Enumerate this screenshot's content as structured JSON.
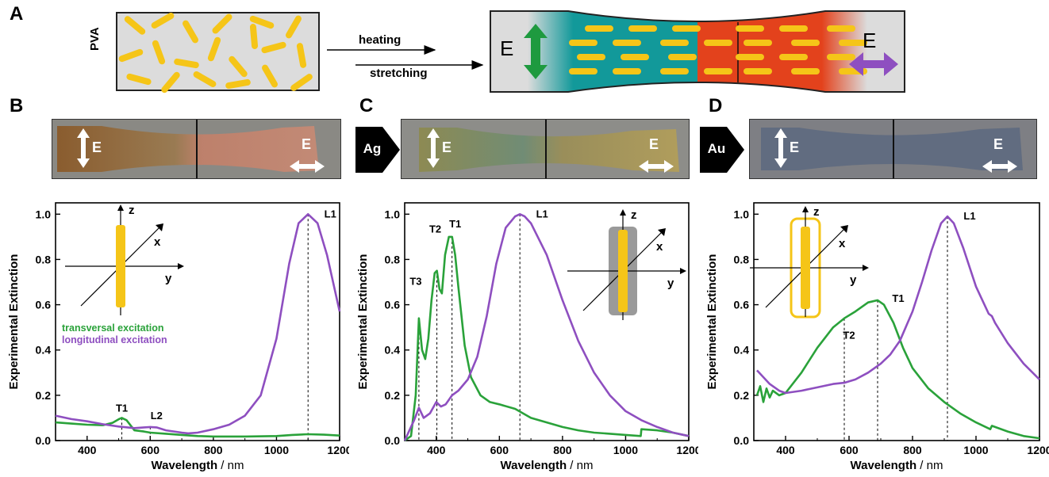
{
  "panel_a": {
    "letter": "A",
    "matrix_label": "PVA",
    "process_top": "heating",
    "process_bottom": "stretching",
    "field_left": "E",
    "field_right": "E",
    "colors": {
      "teal": "#12999a",
      "red": "#e3421c",
      "rod": "#f5c518",
      "green_arrow": "#1e9a3f",
      "purple_arrow": "#8e4fc0"
    }
  },
  "panels": [
    {
      "letter": "B",
      "e_left": "E",
      "e_right": "E",
      "metal": ""
    },
    {
      "letter": "C",
      "e_left": "E",
      "e_right": "E",
      "metal": "Ag"
    },
    {
      "letter": "D",
      "e_left": "E",
      "e_right": "E",
      "metal": "Au"
    }
  ],
  "legend": {
    "transversal": "transversal excitation",
    "longitudinal": "longitudinal excitation"
  },
  "axes_inset": {
    "z": "z",
    "x": "x",
    "y": "y"
  },
  "chart_data": [
    {
      "type": "line",
      "xlabel": "Wavelength",
      "xunit": "/ nm",
      "ylabel": "Experimental Extinction",
      "xlim": [
        300,
        1200
      ],
      "ylim": [
        0,
        1.05
      ],
      "xticks": [
        400,
        600,
        800,
        1000,
        1200
      ],
      "yticks": [
        0.0,
        0.2,
        0.4,
        0.6,
        0.8,
        1.0
      ],
      "series": [
        {
          "name": "transversal excitation",
          "color": "#2aa23a",
          "x": [
            300,
            350,
            400,
            450,
            480,
            500,
            510,
            525,
            550,
            580,
            600,
            650,
            700,
            750,
            800,
            900,
            1000,
            1050,
            1100,
            1150,
            1200
          ],
          "y": [
            0.08,
            0.075,
            0.07,
            0.068,
            0.078,
            0.094,
            0.1,
            0.09,
            0.045,
            0.04,
            0.035,
            0.03,
            0.025,
            0.02,
            0.018,
            0.018,
            0.02,
            0.025,
            0.028,
            0.026,
            0.022
          ]
        },
        {
          "name": "longitudinal excitation",
          "color": "#8e4fc0",
          "x": [
            300,
            350,
            400,
            450,
            500,
            550,
            580,
            600,
            620,
            650,
            700,
            720,
            750,
            800,
            850,
            900,
            950,
            1000,
            1040,
            1070,
            1100,
            1130,
            1160,
            1200
          ],
          "y": [
            0.11,
            0.095,
            0.085,
            0.072,
            0.062,
            0.055,
            0.058,
            0.06,
            0.058,
            0.045,
            0.035,
            0.032,
            0.035,
            0.05,
            0.07,
            0.11,
            0.2,
            0.45,
            0.78,
            0.96,
            1.0,
            0.96,
            0.82,
            0.57
          ]
        }
      ],
      "peaks": [
        {
          "label": "T1",
          "x": 510,
          "y": 0.1
        },
        {
          "label": "L2",
          "x": 600,
          "y": 0.06
        },
        {
          "label": "L1",
          "x": 1100,
          "y": 1.0
        }
      ]
    },
    {
      "type": "line",
      "xlabel": "Wavelength",
      "xunit": "/ nm",
      "ylabel": "Experimental Extinction",
      "xlim": [
        300,
        1200
      ],
      "ylim": [
        0,
        1.05
      ],
      "xticks": [
        400,
        600,
        800,
        1000,
        1200
      ],
      "yticks": [
        0.0,
        0.2,
        0.4,
        0.6,
        0.8,
        1.0
      ],
      "series": [
        {
          "name": "transversal excitation",
          "color": "#2aa23a",
          "x": [
            300,
            320,
            335,
            345,
            355,
            365,
            375,
            385,
            395,
            402,
            410,
            418,
            428,
            440,
            450,
            460,
            470,
            490,
            510,
            540,
            570,
            600,
            650,
            700,
            750,
            800,
            850,
            900,
            950,
            1000,
            1048,
            1050,
            1100,
            1150,
            1200
          ],
          "y": [
            0.0,
            0.02,
            0.2,
            0.54,
            0.4,
            0.36,
            0.45,
            0.62,
            0.74,
            0.75,
            0.67,
            0.65,
            0.82,
            0.9,
            0.9,
            0.82,
            0.68,
            0.42,
            0.28,
            0.2,
            0.17,
            0.16,
            0.14,
            0.1,
            0.08,
            0.06,
            0.045,
            0.035,
            0.03,
            0.025,
            0.02,
            0.05,
            0.045,
            0.035,
            0.02
          ]
        },
        {
          "name": "longitudinal excitation",
          "color": "#8e4fc0",
          "x": [
            300,
            330,
            345,
            360,
            380,
            400,
            415,
            430,
            450,
            470,
            500,
            530,
            560,
            590,
            620,
            650,
            665,
            680,
            700,
            750,
            800,
            850,
            900,
            950,
            1000,
            1050,
            1100,
            1150,
            1200
          ],
          "y": [
            0.0,
            0.09,
            0.145,
            0.1,
            0.12,
            0.17,
            0.15,
            0.16,
            0.2,
            0.22,
            0.27,
            0.37,
            0.55,
            0.78,
            0.94,
            0.99,
            1.0,
            0.99,
            0.96,
            0.82,
            0.62,
            0.44,
            0.3,
            0.2,
            0.13,
            0.09,
            0.06,
            0.035,
            0.02
          ]
        }
      ],
      "peaks": [
        {
          "label": "T3",
          "x": 345,
          "y": 0.54
        },
        {
          "label": "T2",
          "x": 402,
          "y": 0.75
        },
        {
          "label": "T1",
          "x": 450,
          "y": 0.9
        },
        {
          "label": "L1",
          "x": 665,
          "y": 1.0
        }
      ]
    },
    {
      "type": "line",
      "xlabel": "Wavelength",
      "xunit": "/ nm",
      "ylabel": "Experimental Extinction",
      "xlim": [
        300,
        1200
      ],
      "ylim": [
        0,
        1.05
      ],
      "xticks": [
        400,
        600,
        800,
        1000,
        1200
      ],
      "yticks": [
        0.0,
        0.2,
        0.4,
        0.6,
        0.8,
        1.0
      ],
      "series": [
        {
          "name": "transversal excitation",
          "color": "#2aa23a",
          "x": [
            310,
            320,
            330,
            340,
            350,
            360,
            380,
            400,
            450,
            500,
            550,
            585,
            620,
            660,
            690,
            710,
            740,
            770,
            800,
            850,
            900,
            950,
            1000,
            1045,
            1050,
            1100,
            1150,
            1200
          ],
          "y": [
            0.2,
            0.24,
            0.17,
            0.23,
            0.19,
            0.22,
            0.2,
            0.21,
            0.3,
            0.41,
            0.5,
            0.54,
            0.57,
            0.61,
            0.62,
            0.6,
            0.52,
            0.41,
            0.32,
            0.23,
            0.17,
            0.12,
            0.08,
            0.05,
            0.065,
            0.04,
            0.02,
            0.01
          ]
        },
        {
          "name": "longitudinal excitation",
          "color": "#8e4fc0",
          "x": [
            310,
            330,
            350,
            380,
            400,
            450,
            500,
            550,
            585,
            620,
            660,
            700,
            730,
            760,
            800,
            830,
            860,
            890,
            910,
            930,
            960,
            1000,
            1040,
            1050,
            1060,
            1100,
            1150,
            1200
          ],
          "y": [
            0.31,
            0.28,
            0.25,
            0.22,
            0.21,
            0.22,
            0.235,
            0.25,
            0.255,
            0.27,
            0.3,
            0.34,
            0.38,
            0.44,
            0.57,
            0.7,
            0.84,
            0.96,
            0.99,
            0.96,
            0.85,
            0.68,
            0.56,
            0.55,
            0.52,
            0.43,
            0.34,
            0.27
          ]
        }
      ],
      "peaks": [
        {
          "label": "T2",
          "x": 585,
          "y": 0.54
        },
        {
          "label": "T1",
          "x": 690,
          "y": 0.62
        },
        {
          "label": "L1",
          "x": 910,
          "y": 0.99
        }
      ]
    }
  ]
}
